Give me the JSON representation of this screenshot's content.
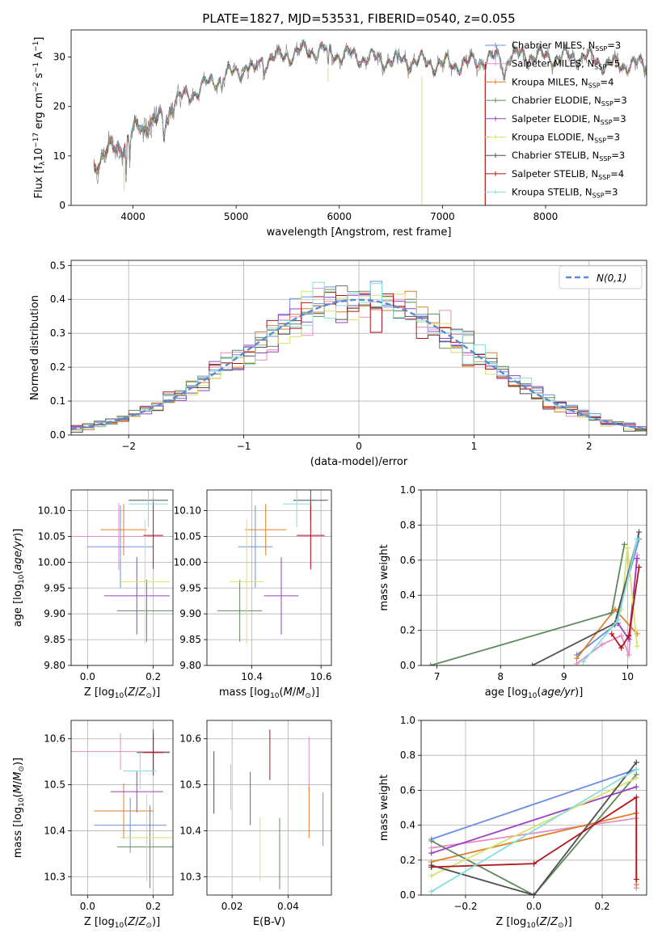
{
  "figure_title": "PLATE=1827, MJD=53531, FIBERID=0540, z=0.055",
  "colors": {
    "Chabrier MILES": "#6b8fe0",
    "Salpeter MILES": "#e58fc3",
    "Kroupa MILES": "#de7f2a",
    "Chabrier ELODIE": "#5d8c5a",
    "Salpeter ELODIE": "#9b3fc0",
    "Kroupa ELODIE": "#d6e36a",
    "Chabrier STELIB": "#4f4f4f",
    "Salpeter STELIB": "#b0161c",
    "Kroupa STELIB": "#86dede"
  },
  "chart_data": [
    {
      "id": "spectrum",
      "type": "line",
      "title": "PLATE=1827, MJD=53531, FIBERID=0540, z=0.055",
      "xlabel": "wavelength [Angstrom, rest frame]",
      "ylabel": "Flux [f_λ 10^-17 erg cm^-2 s^-1 A^-1]",
      "xlim": [
        3400,
        8980
      ],
      "ylim": [
        0,
        35.5
      ],
      "xticks": [
        4000,
        5000,
        6000,
        7000,
        8000
      ],
      "yticks": [
        0,
        10,
        20,
        30
      ],
      "grid": false,
      "legend": "upper right",
      "legend_entries": [
        {
          "model": "Chabrier MILES",
          "nssp": "3"
        },
        {
          "model": "Salpeter MILES",
          "nssp": "5"
        },
        {
          "model": "Kroupa MILES",
          "nssp": "4"
        },
        {
          "model": "Chabrier ELODIE",
          "nssp": "3"
        },
        {
          "model": "Salpeter ELODIE",
          "nssp": "3"
        },
        {
          "model": "Kroupa ELODIE",
          "nssp": "3"
        },
        {
          "model": "Chabrier STELIB",
          "nssp": "3"
        },
        {
          "model": "Salpeter STELIB",
          "nssp": "4"
        },
        {
          "model": "Kroupa STELIB",
          "nssp": "3"
        }
      ],
      "continuum": [
        [
          3620,
          8
        ],
        [
          3700,
          10
        ],
        [
          3800,
          11.5
        ],
        [
          3900,
          12
        ],
        [
          3950,
          13
        ],
        [
          4000,
          15
        ],
        [
          4100,
          16.5
        ],
        [
          4200,
          17
        ],
        [
          4300,
          18
        ],
        [
          4400,
          21
        ],
        [
          4600,
          23
        ],
        [
          4800,
          25.5
        ],
        [
          5000,
          27
        ],
        [
          5200,
          29
        ],
        [
          5400,
          30
        ],
        [
          5600,
          31
        ],
        [
          5800,
          31.5
        ],
        [
          5900,
          31
        ],
        [
          6000,
          30.5
        ],
        [
          6200,
          30
        ],
        [
          6400,
          29.5
        ],
        [
          6600,
          29.5
        ],
        [
          6800,
          29
        ],
        [
          7000,
          28.5
        ],
        [
          7200,
          28.5
        ],
        [
          7400,
          29.5
        ],
        [
          7600,
          30
        ],
        [
          7800,
          30.5
        ],
        [
          8000,
          30
        ],
        [
          8200,
          30
        ],
        [
          8400,
          30
        ],
        [
          8600,
          28.5
        ],
        [
          8800,
          28.5
        ],
        [
          8980,
          28.5
        ]
      ],
      "drops": [
        [
          3912,
          3
        ],
        [
          5891,
          25
        ],
        [
          6800,
          0
        ],
        [
          7408,
          0
        ]
      ]
    },
    {
      "id": "residuals",
      "type": "histogram",
      "xlabel": "(data-model)/error",
      "ylabel": "Normed distribution",
      "xlim": [
        -2.5,
        2.5
      ],
      "ylim": [
        0,
        0.515
      ],
      "xticks": [
        -2,
        -1,
        0,
        1,
        2
      ],
      "yticks": [
        0.0,
        0.1,
        0.2,
        0.3,
        0.4,
        0.5
      ],
      "grid": true,
      "legend": "upper right",
      "reference_curve": {
        "name": "N(0,1)",
        "mean": 0,
        "sigma": 1
      },
      "bin_width": 0.1
    },
    {
      "id": "age_vs_Z",
      "type": "errorbar",
      "xlabel": "Z [log10(Z/Z⊙)]",
      "ylabel": "age [log10(age/yr)]",
      "xlim": [
        -0.05,
        0.26
      ],
      "ylim": [
        9.8,
        10.14
      ],
      "xticks": [
        0.0,
        0.2
      ],
      "yticks": [
        9.8,
        9.85,
        9.9,
        9.95,
        10.0,
        10.05,
        10.1
      ],
      "grid": true,
      "points": [
        {
          "model": "Chabrier MILES",
          "x": 0.1,
          "xerr": 0.1,
          "y": 10.03,
          "yerr": 0.08
        },
        {
          "model": "Salpeter MILES",
          "x": 0.095,
          "xerr": 0.135,
          "y": 10.05,
          "yerr": 0.065
        },
        {
          "model": "Kroupa MILES",
          "x": 0.11,
          "xerr": 0.07,
          "y": 10.063,
          "yerr": 0.05
        },
        {
          "model": "Chabrier ELODIE",
          "x": 0.18,
          "xerr": 0.09,
          "y": 9.906,
          "yerr": 0.06
        },
        {
          "model": "Salpeter ELODIE",
          "x": 0.15,
          "xerr": 0.1,
          "y": 9.935,
          "yerr": 0.075
        },
        {
          "model": "Kroupa ELODIE",
          "x": 0.175,
          "xerr": 0.075,
          "y": 9.962,
          "yerr": 0.12
        },
        {
          "model": "Chabrier STELIB",
          "x": 0.185,
          "xerr": 0.06,
          "y": 10.12,
          "yerr": 0.04
        },
        {
          "model": "Salpeter STELIB",
          "x": 0.2,
          "xerr": 0.03,
          "y": 10.052,
          "yerr": 0.065
        },
        {
          "model": "Kroupa STELIB",
          "x": 0.185,
          "xerr": 0.06,
          "y": 10.113,
          "yerr": 0.045
        }
      ]
    },
    {
      "id": "age_vs_mass",
      "type": "errorbar",
      "xlabel": "mass [log10(M/M⊙)]",
      "ylabel": "",
      "xlim": [
        10.27,
        10.63
      ],
      "ylim": [
        9.8,
        10.14
      ],
      "xticks": [
        10.4,
        10.6
      ],
      "yticks": [
        9.8,
        9.85,
        9.9,
        9.95,
        10.0,
        10.05,
        10.1
      ],
      "grid": true,
      "points": [
        {
          "model": "Chabrier MILES",
          "x": 10.41,
          "xerr": 0.05,
          "y": 10.03,
          "yerr": 0.08
        },
        {
          "model": "Salpeter MILES",
          "x": 10.57,
          "xerr": 0.04,
          "y": 10.05,
          "yerr": 0.065
        },
        {
          "model": "Kroupa MILES",
          "x": 10.44,
          "xerr": 0.06,
          "y": 10.063,
          "yerr": 0.05
        },
        {
          "model": "Chabrier ELODIE",
          "x": 10.365,
          "xerr": 0.065,
          "y": 9.906,
          "yerr": 0.06
        },
        {
          "model": "Salpeter ELODIE",
          "x": 10.485,
          "xerr": 0.05,
          "y": 9.935,
          "yerr": 0.075
        },
        {
          "model": "Kroupa ELODIE",
          "x": 10.385,
          "xerr": 0.05,
          "y": 9.962,
          "yerr": 0.12
        },
        {
          "model": "Chabrier STELIB",
          "x": 10.57,
          "xerr": 0.05,
          "y": 10.12,
          "yerr": 0.04
        },
        {
          "model": "Salpeter STELIB",
          "x": 10.57,
          "xerr": 0.04,
          "y": 10.052,
          "yerr": 0.065
        },
        {
          "model": "Kroupa STELIB",
          "x": 10.53,
          "xerr": 0.04,
          "y": 10.113,
          "yerr": 0.045
        }
      ]
    },
    {
      "id": "weight_vs_age",
      "type": "line",
      "xlabel": "age [log10(age/yr)]",
      "ylabel": "mass weight",
      "xlim": [
        6.75,
        10.3
      ],
      "ylim": [
        0,
        1.0
      ],
      "xticks": [
        7,
        8,
        9,
        10
      ],
      "yticks": [
        0.0,
        0.2,
        0.4,
        0.6,
        0.8,
        1.0
      ],
      "grid": true,
      "series": [
        {
          "model": "Chabrier MILES",
          "points": [
            [
              9.2,
              0.06
            ],
            [
              9.8,
              0.23
            ],
            [
              10.18,
              0.72
            ]
          ]
        },
        {
          "model": "Salpeter MILES",
          "points": [
            [
              9.2,
              0.01
            ],
            [
              9.6,
              0.12
            ],
            [
              9.9,
              0.17
            ],
            [
              10.02,
              0.06
            ],
            [
              10.15,
              0.63
            ]
          ]
        },
        {
          "model": "Kroupa MILES",
          "points": [
            [
              9.2,
              0.04
            ],
            [
              9.8,
              0.32
            ],
            [
              10.15,
              0.18
            ]
          ]
        },
        {
          "model": "Chabrier ELODIE",
          "points": [
            [
              6.9,
              0.0
            ],
            [
              9.75,
              0.3
            ],
            [
              9.95,
              0.69
            ]
          ]
        },
        {
          "model": "Salpeter ELODIE",
          "points": [
            [
              9.85,
              0.24
            ],
            [
              10.02,
              0.15
            ],
            [
              10.15,
              0.61
            ]
          ]
        },
        {
          "model": "Kroupa ELODIE",
          "points": [
            [
              9.9,
              0.32
            ],
            [
              10.0,
              0.67
            ],
            [
              10.15,
              0.11
            ]
          ]
        },
        {
          "model": "Chabrier STELIB",
          "points": [
            [
              8.5,
              0.0
            ],
            [
              9.8,
              0.24
            ],
            [
              10.18,
              0.76
            ]
          ]
        },
        {
          "model": "Salpeter STELIB",
          "points": [
            [
              9.75,
              0.18
            ],
            [
              9.9,
              0.1
            ],
            [
              10.02,
              0.17
            ],
            [
              10.18,
              0.56
            ]
          ]
        },
        {
          "model": "Kroupa STELIB",
          "points": [
            [
              9.3,
              0.02
            ],
            [
              9.85,
              0.26
            ],
            [
              10.15,
              0.72
            ]
          ]
        }
      ]
    },
    {
      "id": "mass_vs_Z",
      "type": "errorbar",
      "xlabel": "Z [log10(Z/Z⊙)]",
      "ylabel": "mass [log10(M/M⊙)]",
      "xlim": [
        -0.05,
        0.26
      ],
      "ylim": [
        10.26,
        10.64
      ],
      "xticks": [
        0.0,
        0.2
      ],
      "yticks": [
        10.3,
        10.4,
        10.5,
        10.6
      ],
      "grid": true,
      "points": [
        {
          "model": "Chabrier MILES",
          "x": 0.13,
          "xerr": 0.11,
          "y": 10.412,
          "yerr": 0.06
        },
        {
          "model": "Salpeter MILES",
          "x": 0.1,
          "xerr": 0.15,
          "y": 10.572,
          "yerr": 0.04
        },
        {
          "model": "Kroupa MILES",
          "x": 0.11,
          "xerr": 0.09,
          "y": 10.443,
          "yerr": 0.06
        },
        {
          "model": "Chabrier ELODIE",
          "x": 0.19,
          "xerr": 0.1,
          "y": 10.365,
          "yerr": 0.09
        },
        {
          "model": "Salpeter ELODIE",
          "x": 0.15,
          "xerr": 0.08,
          "y": 10.485,
          "yerr": 0.045
        },
        {
          "model": "Kroupa ELODIE",
          "x": 0.18,
          "xerr": 0.08,
          "y": 10.385,
          "yerr": 0.095
        },
        {
          "model": "Chabrier STELIB",
          "x": 0.2,
          "xerr": 0.05,
          "y": 10.57,
          "yerr": 0.04
        },
        {
          "model": "Salpeter STELIB",
          "x": 0.2,
          "xerr": 0.03,
          "y": 10.57,
          "yerr": 0.05
        },
        {
          "model": "Kroupa STELIB",
          "x": 0.16,
          "xerr": 0.05,
          "y": 10.53,
          "yerr": 0.04
        }
      ]
    },
    {
      "id": "mass_vs_ebv",
      "type": "errorbar",
      "xlabel": "E(B-V)",
      "ylabel": "",
      "xlim": [
        0.011,
        0.0555
      ],
      "ylim": [
        10.26,
        10.64
      ],
      "xticks": [
        0.02,
        0.04
      ],
      "yticks": [
        10.3,
        10.4,
        10.5,
        10.6
      ],
      "grid": true,
      "points": [
        {
          "model": "Chabrier MILES",
          "x": 0.0525,
          "xerr": 0,
          "y": 10.425,
          "yerr": 0.058
        },
        {
          "model": "Salpeter MILES",
          "x": 0.0475,
          "xerr": 0,
          "y": 10.545,
          "yerr": 0.06
        },
        {
          "model": "Kroupa MILES",
          "x": 0.0475,
          "xerr": 0,
          "y": 10.44,
          "yerr": 0.056
        },
        {
          "model": "Chabrier ELODIE",
          "x": 0.037,
          "xerr": 0,
          "y": 10.35,
          "yerr": 0.078
        },
        {
          "model": "Salpeter ELODIE",
          "x": 0.0265,
          "xerr": 0,
          "y": 10.47,
          "yerr": 0.058
        },
        {
          "model": "Kroupa ELODIE",
          "x": 0.03,
          "xerr": 0,
          "y": 10.36,
          "yerr": 0.07
        },
        {
          "model": "Chabrier STELIB",
          "x": 0.0135,
          "xerr": 0,
          "y": 10.505,
          "yerr": 0.068
        },
        {
          "model": "Salpeter STELIB",
          "x": 0.0335,
          "xerr": 0,
          "y": 10.565,
          "yerr": 0.055
        },
        {
          "model": "Kroupa STELIB",
          "x": 0.0195,
          "xerr": 0,
          "y": 10.495,
          "yerr": 0.05
        }
      ]
    },
    {
      "id": "weight_vs_Z",
      "type": "line",
      "xlabel": "Z [log10(Z/Z⊙)]",
      "ylabel": "mass weight",
      "xlim": [
        -0.33,
        0.33
      ],
      "ylim": [
        0,
        1.0
      ],
      "xticks": [
        -0.2,
        0.0,
        0.2
      ],
      "yticks": [
        0.0,
        0.2,
        0.4,
        0.6,
        0.8,
        1.0
      ],
      "grid": true,
      "series": [
        {
          "model": "Chabrier MILES",
          "points": [
            [
              -0.3,
              0.32
            ],
            [
              0.3,
              0.72
            ]
          ]
        },
        {
          "model": "Salpeter MILES",
          "points": [
            [
              -0.3,
              0.27
            ],
            [
              0.3,
              0.44
            ],
            [
              0.3,
              0.04
            ]
          ]
        },
        {
          "model": "Kroupa MILES",
          "points": [
            [
              -0.3,
              0.19
            ],
            [
              0.3,
              0.47
            ],
            [
              0.3,
              0.06
            ]
          ]
        },
        {
          "model": "Chabrier ELODIE",
          "points": [
            [
              -0.3,
              0.31
            ],
            [
              0.0,
              0.0
            ],
            [
              0.3,
              0.69
            ]
          ]
        },
        {
          "model": "Salpeter ELODIE",
          "points": [
            [
              -0.3,
              0.24
            ],
            [
              0.3,
              0.62
            ]
          ]
        },
        {
          "model": "Kroupa ELODIE",
          "points": [
            [
              -0.3,
              0.11
            ],
            [
              0.3,
              0.67
            ]
          ]
        },
        {
          "model": "Chabrier STELIB",
          "points": [
            [
              -0.3,
              0.17
            ],
            [
              0.0,
              0.0
            ],
            [
              0.3,
              0.76
            ]
          ]
        },
        {
          "model": "Salpeter STELIB",
          "points": [
            [
              -0.3,
              0.16
            ],
            [
              0.0,
              0.18
            ],
            [
              0.3,
              0.56
            ],
            [
              0.3,
              0.09
            ]
          ]
        },
        {
          "model": "Kroupa STELIB",
          "points": [
            [
              -0.3,
              0.02
            ],
            [
              0.3,
              0.72
            ]
          ]
        }
      ]
    }
  ]
}
